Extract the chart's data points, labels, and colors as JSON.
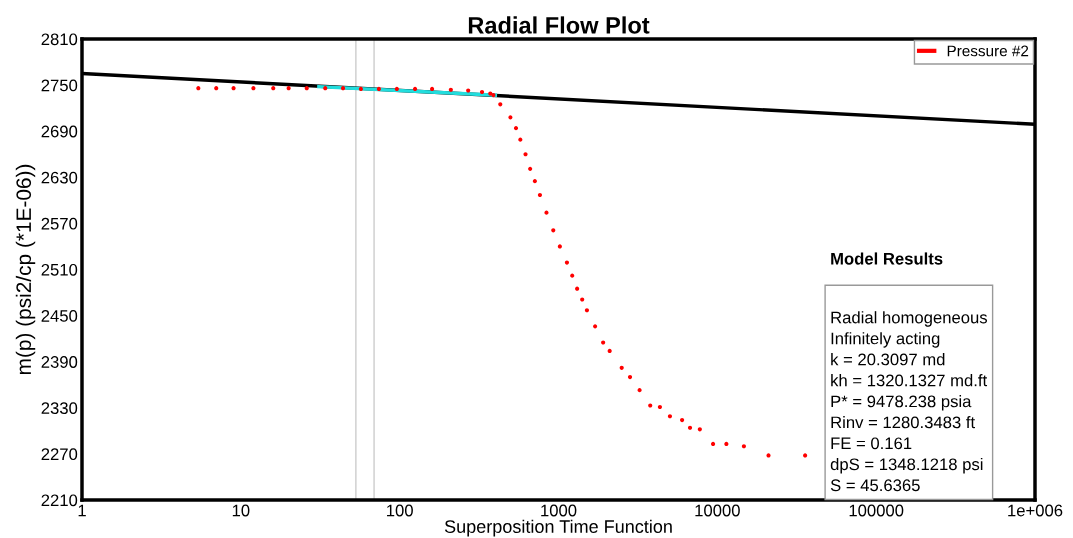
{
  "chart_data": {
    "type": "scatter",
    "title": "Radial Flow Plot",
    "xlabel": "Superposition Time Function",
    "ylabel": "m(p) (psi2/cp (*1E-06))",
    "log": "x",
    "xlim": [
      1,
      1000000
    ],
    "ylim": [
      2210,
      2810
    ],
    "xticks": [
      1,
      10,
      100,
      1000,
      10000,
      100000,
      {
        "value": 1000000,
        "label": "1e+006"
      }
    ],
    "yticks": [
      2210,
      2270,
      2330,
      2390,
      2450,
      2510,
      2570,
      2630,
      2690,
      2750,
      2810
    ],
    "grid": false,
    "legend": "top right",
    "series": [
      {
        "name": "Pressure #2",
        "marker": "circle",
        "color": "#ff0000",
        "x": [
          5.4,
          7,
          9,
          12,
          16,
          20,
          26,
          34,
          44,
          57,
          74,
          96,
          125,
          160,
          210,
          270,
          330,
          372,
          389,
          430,
          498,
          540,
          575,
          620,
          663,
          710,
          764,
          840,
          927,
          1020,
          1130,
          1220,
          1310,
          1410,
          1510,
          1700,
          1910,
          2100,
          2500,
          2820,
          3240,
          3780,
          4350,
          5030,
          6000,
          6730,
          7760,
          9400,
          11400,
          14700,
          21000,
          35700
        ],
        "values": [
          2746,
          2746,
          2746,
          2746,
          2746,
          2746,
          2746,
          2746,
          2746,
          2745,
          2745,
          2745,
          2745,
          2745,
          2744,
          2743,
          2741,
          2739,
          2737,
          2725,
          2708,
          2694,
          2679,
          2660,
          2641,
          2625,
          2607,
          2584,
          2561,
          2540,
          2519,
          2502,
          2485,
          2471,
          2457,
          2436,
          2415,
          2404,
          2382,
          2370,
          2353,
          2333,
          2331,
          2319,
          2314,
          2304,
          2302,
          2283,
          2283,
          2280,
          2268,
          2268
        ]
      },
      {
        "type": "line",
        "color": "#000000",
        "x": [
          1,
          1000000
        ],
        "values": [
          2765,
          2699
        ]
      },
      {
        "type": "line",
        "color": "#22dddd",
        "x": [
          31,
          400
        ],
        "values": [
          2748,
          2737
        ]
      }
    ],
    "ref_lines": [
      {
        "axis": "x",
        "value": 53,
        "color": "#cccccc"
      },
      {
        "axis": "x",
        "value": 69,
        "color": "#cccccc"
      }
    ],
    "annotations": [
      "Model Results",
      "Radial homogeneous",
      "Infinitely acting",
      "k = 20.3097 md",
      "kh = 1320.1327 md.ft",
      "P* = 9478.238 psia",
      "Rinv = 1280.3483 ft",
      "FE = 0.161",
      "dpS = 1348.1218 psi",
      "S = 45.6365"
    ]
  }
}
